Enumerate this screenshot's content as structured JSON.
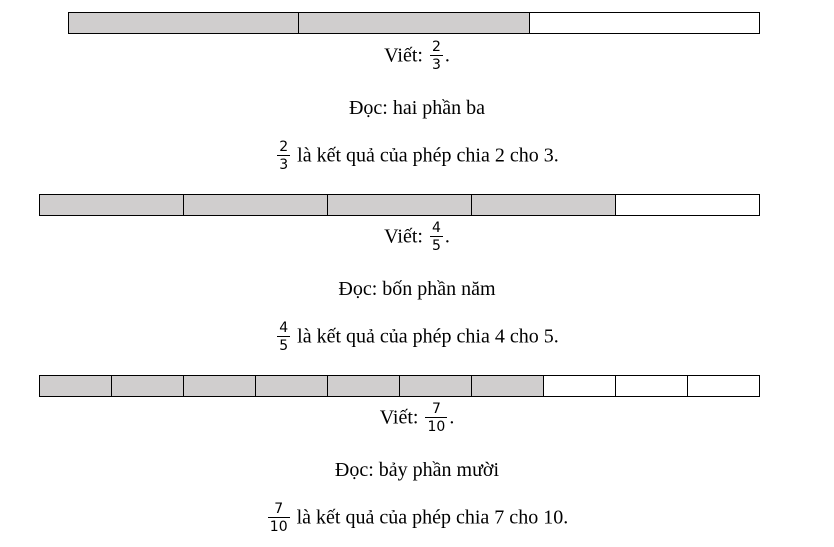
{
  "colors": {
    "filled": "#d0cece",
    "empty": "#ffffff",
    "border": "#000000"
  },
  "sections": [
    {
      "bar": {
        "parts": 3,
        "filled": 2
      },
      "write_label": "Viết:",
      "fraction": {
        "numerator": "2",
        "denominator": "3"
      },
      "write_end": ".",
      "read_text": "Đọc: hai phần ba",
      "result_text": "là kết quả của phép chia 2 cho 3."
    },
    {
      "bar": {
        "parts": 5,
        "filled": 4
      },
      "write_label": "Viết:",
      "fraction": {
        "numerator": "4",
        "denominator": "5"
      },
      "write_end": ".",
      "read_text": "Đọc: bốn phần năm",
      "result_text": "là kết quả của phép chia 4 cho 5."
    },
    {
      "bar": {
        "parts": 10,
        "filled": 7
      },
      "write_label": "Viết:",
      "fraction": {
        "numerator": "7",
        "denominator": "10"
      },
      "write_end": ".",
      "read_text": "Đọc: bảy phần mười",
      "result_text": "là kết quả của phép chia 7 cho 10."
    }
  ]
}
